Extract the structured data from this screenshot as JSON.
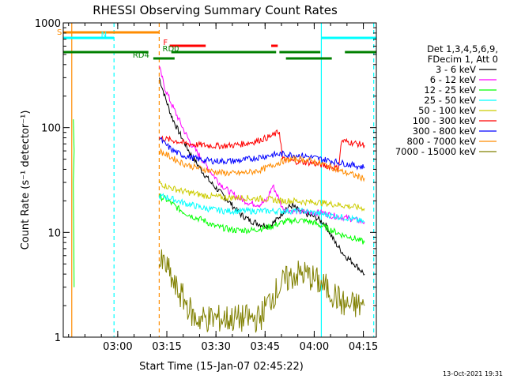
{
  "chart_data": {
    "type": "line",
    "title": "RHESSI Observing Summary Count Rates",
    "xlabel": "Start Time (15-Jan-07 02:45:22)",
    "ylabel": "Count Rate (s⁻¹ detector⁻¹)",
    "yscale": "log",
    "ylim": [
      1,
      1000
    ],
    "xlim_minutes": [
      -2.0,
      93.6
    ],
    "x_ticks": [
      {
        "label": "03:00",
        "minutes": 14.63
      },
      {
        "label": "03:15",
        "minutes": 29.63
      },
      {
        "label": "03:30",
        "minutes": 44.63
      },
      {
        "label": "03:45",
        "minutes": 59.63
      },
      {
        "label": "04:00",
        "minutes": 74.63
      },
      {
        "label": "04:15",
        "minutes": 89.63
      }
    ],
    "y_ticks": [
      {
        "label": "1",
        "value": 1
      },
      {
        "label": "10",
        "value": 10
      },
      {
        "label": "100",
        "value": 100
      },
      {
        "label": "1000",
        "value": 1000
      }
    ],
    "legend_header": [
      "Det 1,3,4,5,6,9,",
      "FDecim 1, Att 0"
    ],
    "series": [
      {
        "name": "3 - 6 keV",
        "color": "#000000",
        "points": [
          [
            27.3,
            300
          ],
          [
            29,
            200
          ],
          [
            31,
            130
          ],
          [
            33,
            95
          ],
          [
            35,
            72
          ],
          [
            37,
            55
          ],
          [
            40,
            40
          ],
          [
            43,
            30
          ],
          [
            46,
            24
          ],
          [
            49,
            19
          ],
          [
            52,
            15
          ],
          [
            55,
            13
          ],
          [
            58,
            12
          ],
          [
            61,
            11.5
          ],
          [
            63,
            13
          ],
          [
            66,
            17
          ],
          [
            68,
            18
          ],
          [
            70,
            16
          ],
          [
            72,
            15
          ],
          [
            75,
            14
          ],
          [
            78,
            12
          ],
          [
            81,
            8
          ],
          [
            84,
            6
          ],
          [
            87,
            5
          ],
          [
            90,
            4
          ]
        ]
      },
      {
        "name": "6 - 12 keV",
        "color": "#ff00ff",
        "points": [
          [
            27.3,
            380
          ],
          [
            29,
            240
          ],
          [
            31,
            170
          ],
          [
            33,
            125
          ],
          [
            35,
            92
          ],
          [
            37,
            70
          ],
          [
            40,
            52
          ],
          [
            43,
            38
          ],
          [
            46,
            29
          ],
          [
            49,
            24
          ],
          [
            52,
            21
          ],
          [
            55,
            19
          ],
          [
            58,
            18.5
          ],
          [
            60,
            20
          ],
          [
            62,
            28
          ],
          [
            63,
            24
          ],
          [
            65,
            17
          ],
          [
            68,
            16
          ],
          [
            71,
            15.5
          ],
          [
            74,
            15.5
          ],
          [
            77,
            15.5
          ],
          [
            80,
            14.5
          ],
          [
            83,
            14
          ],
          [
            86,
            13.5
          ],
          [
            88,
            13
          ],
          [
            90,
            12.5
          ]
        ]
      },
      {
        "name": "12 - 25 keV",
        "color": "#00ff00",
        "points": [
          [
            27.3,
            22
          ],
          [
            29,
            21
          ],
          [
            31,
            19
          ],
          [
            33,
            17
          ],
          [
            35,
            15.5
          ],
          [
            38,
            14
          ],
          [
            41,
            13
          ],
          [
            44,
            11.5
          ],
          [
            47,
            11
          ],
          [
            50,
            10.5
          ],
          [
            53,
            10.5
          ],
          [
            56,
            10.5
          ],
          [
            59,
            11
          ],
          [
            62,
            11.5
          ],
          [
            65,
            12.5
          ],
          [
            68,
            13
          ],
          [
            71,
            13
          ],
          [
            74,
            12.5
          ],
          [
            77,
            11.5
          ],
          [
            80,
            10.5
          ],
          [
            83,
            9.5
          ],
          [
            86,
            9
          ],
          [
            88,
            8.5
          ],
          [
            90,
            8
          ]
        ]
      },
      {
        "name": "25 - 50 keV",
        "color": "#00ffff",
        "points": [
          [
            27.3,
            22
          ],
          [
            29,
            22
          ],
          [
            31,
            21
          ],
          [
            33,
            20
          ],
          [
            35,
            19
          ],
          [
            38,
            18
          ],
          [
            41,
            17
          ],
          [
            44,
            16.5
          ],
          [
            47,
            16
          ],
          [
            50,
            16
          ],
          [
            53,
            16
          ],
          [
            56,
            16
          ],
          [
            59,
            16
          ],
          [
            62,
            16
          ],
          [
            65,
            16
          ],
          [
            68,
            16
          ],
          [
            71,
            16
          ],
          [
            74,
            15.5
          ],
          [
            77,
            15
          ],
          [
            80,
            14.5
          ],
          [
            83,
            14
          ],
          [
            86,
            13.5
          ],
          [
            88,
            13
          ],
          [
            90,
            12.5
          ]
        ]
      },
      {
        "name": "50 - 100 keV",
        "color": "#cccc00",
        "points": [
          [
            27.3,
            30
          ],
          [
            29,
            28
          ],
          [
            31,
            26.5
          ],
          [
            33,
            25.5
          ],
          [
            35,
            24.5
          ],
          [
            38,
            23.5
          ],
          [
            41,
            22.5
          ],
          [
            44,
            22
          ],
          [
            47,
            21.5
          ],
          [
            50,
            21.5
          ],
          [
            53,
            21.5
          ],
          [
            56,
            21
          ],
          [
            59,
            21
          ],
          [
            62,
            20.5
          ],
          [
            64,
            20
          ],
          [
            66,
            20
          ],
          [
            69,
            20
          ],
          [
            72,
            19.5
          ],
          [
            75,
            19.5
          ],
          [
            78,
            19
          ],
          [
            81,
            18.5
          ],
          [
            84,
            18
          ],
          [
            87,
            17.5
          ],
          [
            90,
            17
          ]
        ]
      },
      {
        "name": "100 - 300 keV",
        "color": "#ff0000",
        "points": [
          [
            27.3,
            80
          ],
          [
            29,
            78
          ],
          [
            31,
            76
          ],
          [
            33,
            74
          ],
          [
            35,
            71
          ],
          [
            38,
            69
          ],
          [
            41,
            68
          ],
          [
            44,
            67
          ],
          [
            47,
            67
          ],
          [
            50,
            68
          ],
          [
            53,
            70
          ],
          [
            56,
            73
          ],
          [
            59,
            78
          ],
          [
            62,
            84
          ],
          [
            64,
            92
          ],
          [
            65,
            50
          ],
          [
            68,
            48
          ],
          [
            71,
            47
          ],
          [
            74,
            46
          ],
          [
            77,
            44
          ],
          [
            80,
            42
          ],
          [
            82,
            41
          ],
          [
            83,
            75
          ],
          [
            86,
            72
          ],
          [
            88,
            70
          ],
          [
            90,
            68
          ]
        ]
      },
      {
        "name": "300 - 800 keV",
        "color": "#0000ff",
        "points": [
          [
            27.3,
            80
          ],
          [
            29,
            70
          ],
          [
            31,
            62
          ],
          [
            33,
            57
          ],
          [
            35,
            54
          ],
          [
            38,
            51
          ],
          [
            41,
            49
          ],
          [
            44,
            48
          ],
          [
            47,
            48
          ],
          [
            50,
            48
          ],
          [
            53,
            49
          ],
          [
            56,
            51
          ],
          [
            59,
            53
          ],
          [
            62,
            55
          ],
          [
            65,
            56
          ],
          [
            68,
            55
          ],
          [
            71,
            54
          ],
          [
            74,
            52
          ],
          [
            77,
            50
          ],
          [
            80,
            48
          ],
          [
            83,
            46
          ],
          [
            86,
            44
          ],
          [
            88,
            43
          ],
          [
            90,
            42
          ]
        ]
      },
      {
        "name": "800 - 7000 keV",
        "color": "#ff8c00",
        "points": [
          [
            27.3,
            60
          ],
          [
            29,
            56
          ],
          [
            31,
            52
          ],
          [
            33,
            48
          ],
          [
            35,
            45
          ],
          [
            38,
            42
          ],
          [
            41,
            40
          ],
          [
            44,
            38
          ],
          [
            47,
            37
          ],
          [
            50,
            36.5
          ],
          [
            53,
            37
          ],
          [
            56,
            38
          ],
          [
            59,
            40
          ],
          [
            62,
            44
          ],
          [
            65,
            48
          ],
          [
            68,
            50
          ],
          [
            71,
            50
          ],
          [
            74,
            48
          ],
          [
            77,
            45
          ],
          [
            80,
            42
          ],
          [
            83,
            38
          ],
          [
            86,
            36
          ],
          [
            88,
            34
          ],
          [
            90,
            33
          ]
        ]
      },
      {
        "name": "7000 - 15000 keV",
        "color": "#808000",
        "points": [
          [
            27.3,
            5
          ],
          [
            29,
            5
          ],
          [
            30.5,
            4
          ],
          [
            32,
            3
          ],
          [
            34,
            2.5
          ],
          [
            36,
            2
          ],
          [
            38,
            1.5
          ],
          [
            40,
            1.5
          ],
          [
            45,
            1.5
          ],
          [
            50,
            1.5
          ],
          [
            55,
            1.5
          ],
          [
            58,
            1.5
          ],
          [
            60,
            2
          ],
          [
            62,
            2.5
          ],
          [
            64,
            3
          ],
          [
            66,
            3.5
          ],
          [
            69,
            4
          ],
          [
            72,
            4
          ],
          [
            75,
            3.5
          ],
          [
            78,
            3
          ],
          [
            81,
            2.5
          ],
          [
            84,
            2
          ],
          [
            87,
            2
          ],
          [
            90,
            2
          ]
        ]
      }
    ],
    "left_spike": {
      "color": "#00ff00",
      "minutes": 0.6,
      "values": [
        120,
        60,
        30,
        3
      ]
    },
    "state_flags": [
      {
        "label": "S",
        "color": "#ff8c00",
        "label_at_min": -2.0,
        "intervals": [
          [
            -2.0,
            27.3
          ]
        ]
      },
      {
        "label": "N",
        "color": "#00ffff",
        "label_at_min": 9.5,
        "intervals": [
          [
            -2.0,
            13.5
          ],
          [
            76.8,
            93.6
          ]
        ]
      },
      {
        "label": "F",
        "color": "#ff0000",
        "label_at_min": 28.5,
        "intervals": [
          [
            30.5,
            41.5
          ],
          [
            61.5,
            63.5
          ]
        ]
      },
      {
        "label": "RD0",
        "color": "#008000",
        "label_at_min": 28.3,
        "intervals": [
          [
            -2.0,
            24.0
          ],
          [
            31.0,
            63.0
          ],
          [
            64.0,
            76.5
          ],
          [
            84.0,
            93.6
          ]
        ]
      },
      {
        "label": "RD4",
        "color": "#008000",
        "label_at_min": 19.2,
        "intervals": [
          [
            25.5,
            32.0
          ],
          [
            66.0,
            80.0
          ]
        ]
      }
    ],
    "vertical_markers": [
      {
        "minutes": 0.6,
        "color": "#ff8c00",
        "style": "solid"
      },
      {
        "minutes": 13.5,
        "color": "#00ffff",
        "style": "dashed"
      },
      {
        "minutes": 27.3,
        "color": "#ff8c00",
        "style": "dashed"
      },
      {
        "minutes": 76.8,
        "color": "#00ffff",
        "style": "solid"
      },
      {
        "minutes": 92.8,
        "color": "#00ffff",
        "style": "dashed"
      }
    ],
    "grid": false,
    "legend_position": "right"
  },
  "footer": {
    "timestamp": "13-Oct-2021 19:31"
  }
}
